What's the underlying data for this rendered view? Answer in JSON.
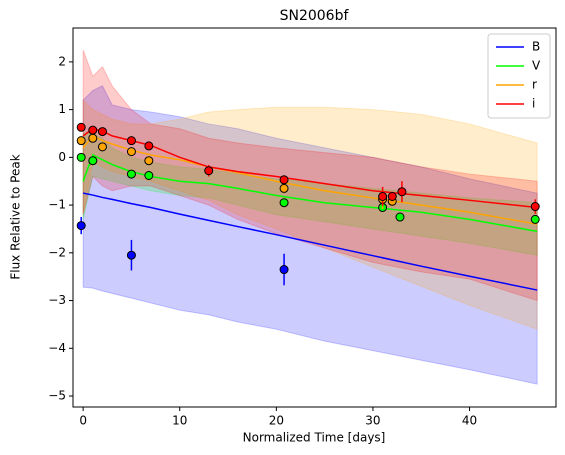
{
  "chart_data": {
    "type": "line",
    "title": "SN2006bf",
    "xlabel": "Normalized Time [days]",
    "ylabel": "Flux Relative to Peak",
    "xlim": [
      -1.05,
      48.95
    ],
    "ylim": [
      -5.23,
      2.71
    ],
    "xticks": [
      0,
      10,
      20,
      30,
      40
    ],
    "yticks": [
      {
        "value": -5,
        "label": "−5"
      },
      {
        "value": -4,
        "label": "−4"
      },
      {
        "value": -3,
        "label": "−3"
      },
      {
        "value": -2,
        "label": "−2"
      },
      {
        "value": -1,
        "label": "−1"
      },
      0,
      1,
      2
    ],
    "legend": "upper right",
    "model_x": [
      0,
      1,
      2,
      3,
      5,
      7,
      10,
      13,
      16,
      20,
      25,
      30,
      35,
      40,
      47
    ],
    "series": [
      {
        "name": "B",
        "color": "#0000ff",
        "model": [
          -0.75,
          -0.79,
          -0.84,
          -0.88,
          -0.97,
          -1.05,
          -1.19,
          -1.32,
          -1.45,
          -1.62,
          -1.84,
          -2.06,
          -2.28,
          -2.49,
          -2.78
        ],
        "upper": [
          1.2,
          1.4,
          1.5,
          1.1,
          1.0,
          0.95,
          0.85,
          0.7,
          0.6,
          0.4,
          0.2,
          0.0,
          -0.2,
          -0.45,
          -0.75
        ],
        "lower": [
          -2.72,
          -2.74,
          -2.8,
          -2.85,
          -2.95,
          -3.05,
          -3.2,
          -3.3,
          -3.45,
          -3.6,
          -3.85,
          -4.05,
          -4.25,
          -4.45,
          -4.75
        ],
        "obs_x": [
          -0.2,
          5,
          20.8
        ],
        "obs_y": [
          -1.43,
          -2.05,
          -2.35
        ],
        "obs_err": [
          0.18,
          0.32,
          0.33
        ]
      },
      {
        "name": "V",
        "color": "#00ff00",
        "model": [
          -0.5,
          0.05,
          -0.05,
          -0.15,
          -0.3,
          -0.4,
          -0.5,
          -0.55,
          -0.65,
          -0.8,
          -0.95,
          -1.05,
          -1.15,
          -1.3,
          -1.55
        ],
        "upper": [
          0.5,
          0.5,
          0.4,
          0.2,
          0.0,
          -0.1,
          -0.2,
          -0.25,
          -0.35,
          -0.45,
          -0.55,
          -0.65,
          -0.75,
          -0.85,
          -0.95
        ],
        "lower": [
          -1.3,
          -0.4,
          -0.45,
          -0.5,
          -0.6,
          -0.7,
          -0.8,
          -0.85,
          -1.0,
          -1.2,
          -1.35,
          -1.5,
          -1.65,
          -1.8,
          -2.05
        ],
        "obs_x": [
          -0.2,
          1,
          5,
          6.8,
          20.8,
          31,
          32.8,
          46.8
        ],
        "obs_y": [
          0.0,
          -0.07,
          -0.35,
          -0.38,
          -0.95,
          -1.05,
          -1.25,
          -1.3
        ],
        "obs_err": [
          0.05,
          0.05,
          0.05,
          0.05,
          0.05,
          0.08,
          0.08,
          0.08
        ]
      },
      {
        "name": "r",
        "color": "#ffa500",
        "model": [
          0.2,
          0.45,
          0.35,
          0.28,
          0.15,
          0.05,
          -0.05,
          -0.2,
          -0.32,
          -0.5,
          -0.7,
          -0.85,
          -1.0,
          -1.15,
          -1.4
        ],
        "upper": [
          1.2,
          1.0,
          0.9,
          0.8,
          0.7,
          0.7,
          0.8,
          0.95,
          1.0,
          1.05,
          1.05,
          1.0,
          0.9,
          0.7,
          0.3
        ],
        "lower": [
          -1.2,
          -0.1,
          -0.2,
          -0.3,
          -0.4,
          -0.5,
          -0.7,
          -0.9,
          -1.2,
          -1.5,
          -1.9,
          -2.3,
          -2.7,
          -3.1,
          -3.6
        ],
        "obs_x": [
          -0.2,
          1,
          2,
          5,
          6.8,
          20.8,
          31,
          32
        ],
        "obs_y": [
          0.35,
          0.4,
          0.22,
          0.12,
          -0.07,
          -0.65,
          -0.88,
          -0.92
        ],
        "obs_err": [
          0.05,
          0.05,
          0.05,
          0.05,
          0.05,
          0.1,
          0.2,
          0.1
        ]
      },
      {
        "name": "i",
        "color": "#ff0000",
        "model": [
          0.45,
          0.6,
          0.55,
          0.45,
          0.35,
          0.25,
          0.0,
          -0.2,
          -0.3,
          -0.4,
          -0.55,
          -0.7,
          -0.8,
          -0.9,
          -1.05
        ],
        "upper": [
          2.25,
          1.7,
          1.9,
          1.5,
          1.0,
          0.7,
          0.6,
          0.4,
          0.3,
          0.2,
          0.1,
          0.0,
          -0.2,
          -0.35,
          -0.5
        ],
        "lower": [
          -1.2,
          -0.4,
          -0.6,
          -0.7,
          -0.6,
          -0.6,
          -0.8,
          -1.0,
          -1.3,
          -1.6,
          -1.9,
          -2.2,
          -2.4,
          -2.55,
          -3.0
        ],
        "obs_x": [
          -0.2,
          1,
          2,
          5,
          6.8,
          13,
          20.8,
          31,
          32,
          33,
          46.8
        ],
        "obs_y": [
          0.63,
          0.57,
          0.54,
          0.35,
          0.24,
          -0.28,
          -0.47,
          -0.82,
          -0.82,
          -0.72,
          -1.03
        ],
        "obs_err": [
          0.05,
          0.05,
          0.05,
          0.05,
          0.05,
          0.12,
          0.08,
          0.2,
          0.1,
          0.22,
          0.15
        ]
      }
    ]
  }
}
